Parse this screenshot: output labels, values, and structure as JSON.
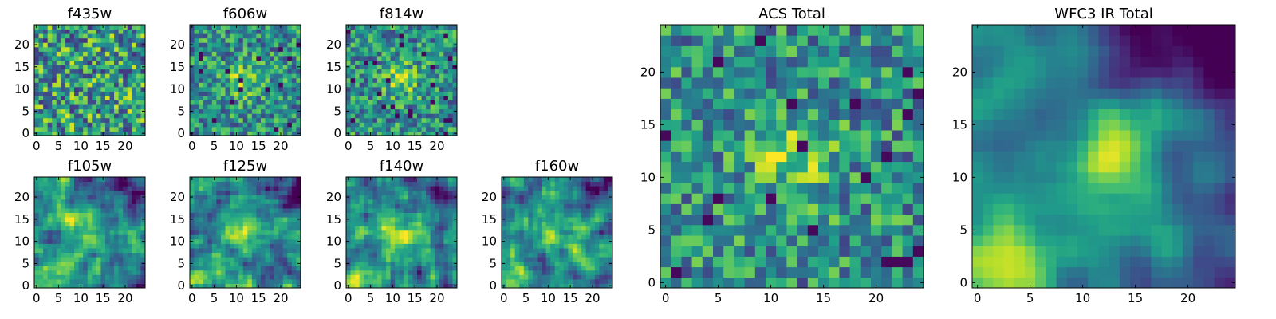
{
  "chart_data": [
    {
      "type": "heatmap",
      "title": "f435w",
      "seed": 11,
      "profile": "noise",
      "xticks": [
        "0",
        "5",
        "10",
        "15",
        "20"
      ],
      "yticks": [
        "0",
        "5",
        "10",
        "15",
        "20"
      ],
      "xlim": [
        0,
        24
      ],
      "ylim": [
        0,
        24
      ],
      "colormap": "viridis"
    },
    {
      "type": "heatmap",
      "title": "f606w",
      "seed": 23,
      "profile": "noise-center",
      "xticks": [
        "0",
        "5",
        "10",
        "15",
        "20"
      ],
      "yticks": [
        "0",
        "5",
        "10",
        "15",
        "20"
      ],
      "xlim": [
        0,
        24
      ],
      "ylim": [
        0,
        24
      ],
      "colormap": "viridis"
    },
    {
      "type": "heatmap",
      "title": "f814w",
      "seed": 37,
      "profile": "noise-center",
      "xticks": [
        "0",
        "5",
        "10",
        "15",
        "20"
      ],
      "yticks": [
        "0",
        "5",
        "10",
        "15",
        "20"
      ],
      "xlim": [
        0,
        24
      ],
      "ylim": [
        0,
        24
      ],
      "colormap": "viridis"
    },
    {
      "type": "heatmap",
      "title": "f105w",
      "seed": 41,
      "profile": "smooth",
      "xticks": [
        "0",
        "5",
        "10",
        "15",
        "20"
      ],
      "yticks": [
        "0",
        "5",
        "10",
        "15",
        "20"
      ],
      "xlim": [
        0,
        24
      ],
      "ylim": [
        0,
        24
      ],
      "colormap": "viridis"
    },
    {
      "type": "heatmap",
      "title": "f125w",
      "seed": 53,
      "profile": "smooth",
      "xticks": [
        "0",
        "5",
        "10",
        "15",
        "20"
      ],
      "yticks": [
        "0",
        "5",
        "10",
        "15",
        "20"
      ],
      "xlim": [
        0,
        24
      ],
      "ylim": [
        0,
        24
      ],
      "colormap": "viridis"
    },
    {
      "type": "heatmap",
      "title": "f140w",
      "seed": 67,
      "profile": "smooth",
      "xticks": [
        "0",
        "5",
        "10",
        "15",
        "20"
      ],
      "yticks": [
        "0",
        "5",
        "10",
        "15",
        "20"
      ],
      "xlim": [
        0,
        24
      ],
      "ylim": [
        0,
        24
      ],
      "colormap": "viridis"
    },
    {
      "type": "heatmap",
      "title": "f160w",
      "seed": 79,
      "profile": "smooth",
      "xticks": [
        "0",
        "5",
        "10",
        "15",
        "20"
      ],
      "yticks": [
        "0",
        "5",
        "10",
        "15",
        "20"
      ],
      "xlim": [
        0,
        24
      ],
      "ylim": [
        0,
        24
      ],
      "colormap": "viridis"
    },
    {
      "type": "heatmap",
      "title": "ACS Total",
      "seed": 97,
      "profile": "noise-center",
      "xticks": [
        "0",
        "5",
        "10",
        "15",
        "20"
      ],
      "yticks": [
        "0",
        "5",
        "10",
        "15",
        "20"
      ],
      "xlim": [
        0,
        24
      ],
      "ylim": [
        0,
        24
      ],
      "colormap": "viridis"
    },
    {
      "type": "heatmap",
      "title": "WFC3 IR Total",
      "seed": 101,
      "profile": "ir-total",
      "xticks": [
        "0",
        "5",
        "10",
        "15",
        "20"
      ],
      "yticks": [
        "0",
        "5",
        "10",
        "15",
        "20"
      ],
      "xlim": [
        0,
        24
      ],
      "ylim": [
        0,
        24
      ],
      "colormap": "viridis"
    }
  ]
}
